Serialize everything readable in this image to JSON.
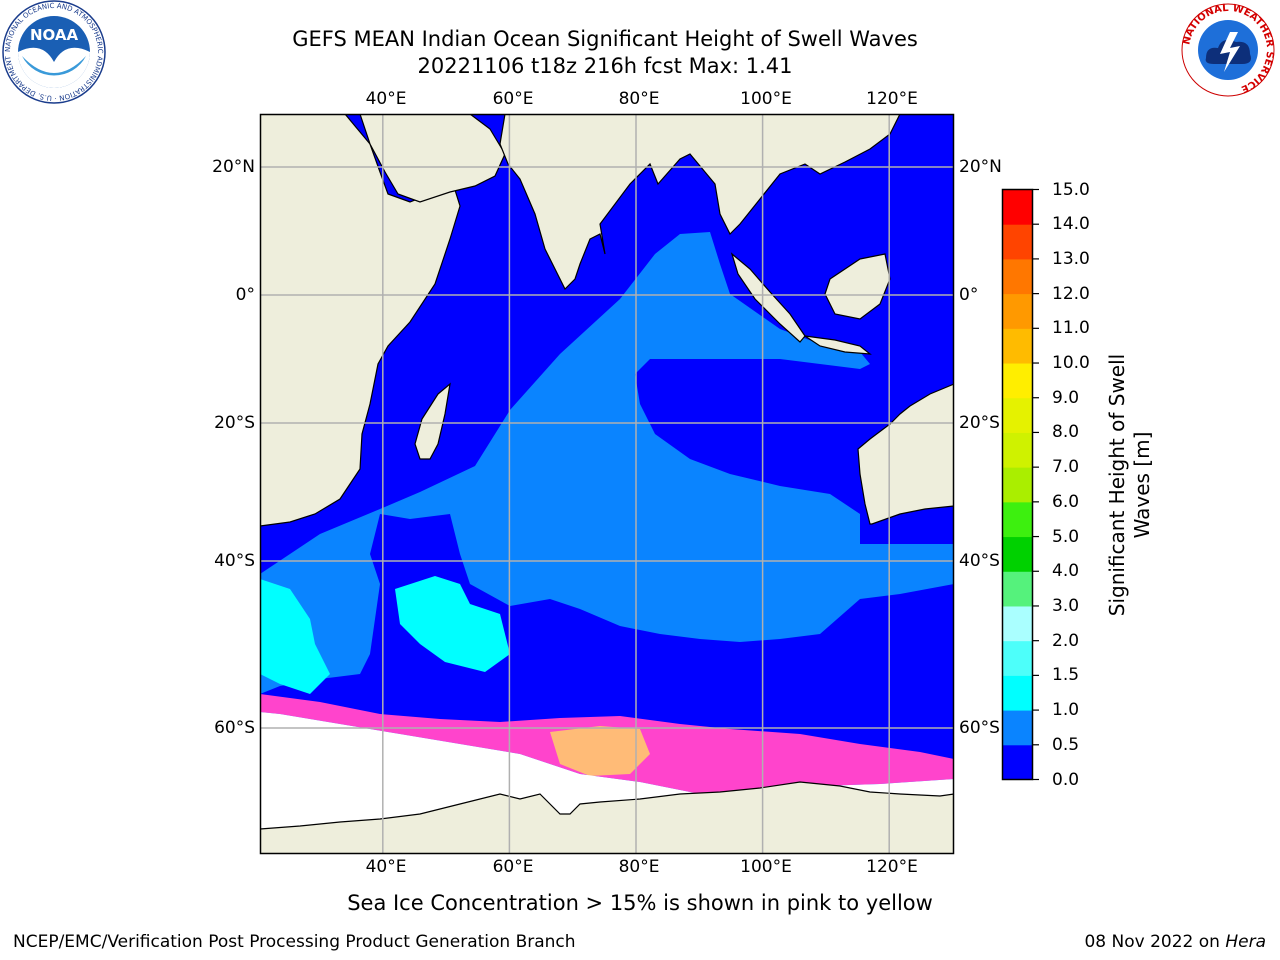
{
  "title": {
    "line1": "GEFS MEAN Indian Ocean Significant Height of Swell Waves",
    "line2": "20221106 t18z 216h fcst   Max: 1.41"
  },
  "map": {
    "lon_ticks": [
      "40°E",
      "60°E",
      "80°E",
      "100°E",
      "120°E"
    ],
    "lat_ticks": [
      "20°N",
      "0°",
      "20°S",
      "40°S",
      "60°S"
    ],
    "lon_values": [
      40,
      60,
      80,
      100,
      120
    ],
    "lat_values": [
      20,
      0,
      -20,
      -40,
      -60
    ],
    "colors": {
      "land": "#eeeedc",
      "ocean_low": "#0000ff",
      "ocean_mid": "#0a84ff",
      "ocean_high": "#00ffff",
      "sea_ice": "#ff44cc",
      "sea_ice_dense": "#ffbb77",
      "grid": "#b0b0b0"
    }
  },
  "colorbar": {
    "label_line1": "Significant Height of Swell",
    "label_line2": "Waves [m]",
    "ticks": [
      "0.0",
      "0.5",
      "1.0",
      "1.5",
      "2.0",
      "3.0",
      "4.0",
      "5.0",
      "6.0",
      "7.0",
      "8.0",
      "9.0",
      "10.0",
      "11.0",
      "12.0",
      "13.0",
      "14.0",
      "15.0"
    ],
    "colors": [
      "#0000ff",
      "#0a84ff",
      "#00ffff",
      "#4dfffa",
      "#aaffff",
      "#55f27c",
      "#00d100",
      "#3df00f",
      "#aaee00",
      "#cff200",
      "#e5f200",
      "#ffee00",
      "#ffbb00",
      "#ff9900",
      "#ff7700",
      "#ff4400",
      "#ff0000"
    ]
  },
  "caption": "Sea Ice Concentration > 15% is shown in pink to yellow",
  "footer": {
    "left": "NCEP/EMC/Verification Post Processing Product Generation Branch",
    "right_date": "08 Nov 2022 on",
    "right_host": "Hera"
  },
  "logos": {
    "noaa_text": "NOAA",
    "noaa_ring_text": "NATIONAL OCEANIC AND ATMOSPHERIC ADMINISTRATION · U.S. DEPARTMENT OF COMMERCE",
    "nws_ring_text": "NATIONAL WEATHER SERVICE"
  }
}
